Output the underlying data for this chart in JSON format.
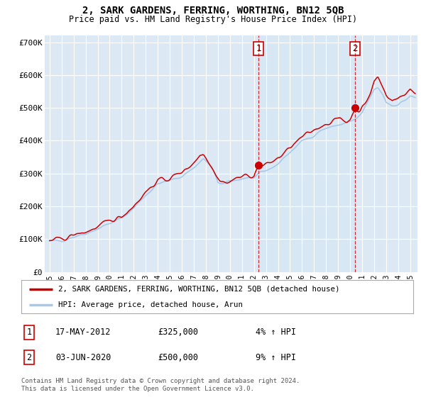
{
  "title": "2, SARK GARDENS, FERRING, WORTHING, BN12 5QB",
  "subtitle": "Price paid vs. HM Land Registry's House Price Index (HPI)",
  "background_color": "#ffffff",
  "plot_bg_color": "#dce9f5",
  "grid_color": "#ffffff",
  "hpi_color": "#a8c8e8",
  "price_color": "#cc0000",
  "marker_color": "#cc0000",
  "vline_color": "#cc0000",
  "ylim": [
    0,
    720000
  ],
  "yticks": [
    0,
    100000,
    200000,
    300000,
    400000,
    500000,
    600000,
    700000
  ],
  "ytick_labels": [
    "£0",
    "£100K",
    "£200K",
    "£300K",
    "£400K",
    "£500K",
    "£600K",
    "£700K"
  ],
  "xlim_start": 1994.6,
  "xlim_end": 2025.6,
  "xtick_years": [
    1995,
    1996,
    1997,
    1998,
    1999,
    2000,
    2001,
    2002,
    2003,
    2004,
    2005,
    2006,
    2007,
    2008,
    2009,
    2010,
    2011,
    2012,
    2013,
    2014,
    2015,
    2016,
    2017,
    2018,
    2019,
    2020,
    2021,
    2022,
    2023,
    2024,
    2025
  ],
  "sale1_x": 2012.38,
  "sale1_y": 325000,
  "sale1_label": "1",
  "sale2_x": 2020.42,
  "sale2_y": 500000,
  "sale2_label": "2",
  "legend_line1": "2, SARK GARDENS, FERRING, WORTHING, BN12 5QB (detached house)",
  "legend_line2": "HPI: Average price, detached house, Arun",
  "table_row1_label": "1",
  "table_row1_date": "17-MAY-2012",
  "table_row1_price": "£325,000",
  "table_row1_hpi": "4% ↑ HPI",
  "table_row2_label": "2",
  "table_row2_date": "03-JUN-2020",
  "table_row2_price": "£500,000",
  "table_row2_hpi": "9% ↑ HPI",
  "footnote": "Contains HM Land Registry data © Crown copyright and database right 2024.\nThis data is licensed under the Open Government Licence v3.0.",
  "hpi_anchors_t": [
    1995.0,
    1996.0,
    1997.0,
    1998.0,
    1999.0,
    2000.0,
    2001.0,
    2002.0,
    2003.0,
    2004.0,
    2005.0,
    2006.0,
    2007.0,
    2007.8,
    2008.5,
    2009.0,
    2009.5,
    2010.0,
    2010.5,
    2011.0,
    2011.5,
    2012.0,
    2012.5,
    2013.0,
    2013.5,
    2014.0,
    2014.5,
    2015.0,
    2015.5,
    2016.0,
    2016.5,
    2017.0,
    2017.5,
    2018.0,
    2018.5,
    2019.0,
    2019.5,
    2020.0,
    2020.5,
    2021.0,
    2021.5,
    2022.0,
    2022.3,
    2022.7,
    2023.0,
    2023.5,
    2024.0,
    2024.5,
    2025.0,
    2025.4
  ],
  "hpi_anchors_y": [
    92000,
    97000,
    108000,
    118000,
    132000,
    148000,
    163000,
    195000,
    235000,
    268000,
    278000,
    292000,
    318000,
    345000,
    318000,
    272000,
    268000,
    275000,
    280000,
    285000,
    288000,
    285000,
    298000,
    308000,
    318000,
    330000,
    348000,
    365000,
    382000,
    398000,
    408000,
    418000,
    430000,
    438000,
    442000,
    448000,
    452000,
    458000,
    465000,
    482000,
    520000,
    555000,
    560000,
    542000,
    518000,
    508000,
    512000,
    522000,
    535000,
    530000
  ],
  "price_anchors_t": [
    1995.0,
    1996.0,
    1997.0,
    1998.0,
    1999.0,
    2000.0,
    2001.0,
    2002.0,
    2003.0,
    2004.0,
    2005.0,
    2005.5,
    2006.0,
    2006.5,
    2007.0,
    2007.5,
    2007.8,
    2008.3,
    2008.7,
    2009.2,
    2009.7,
    2010.2,
    2010.7,
    2011.2,
    2011.7,
    2012.0,
    2012.38,
    2012.7,
    2013.2,
    2013.7,
    2014.2,
    2014.7,
    2015.2,
    2015.7,
    2016.2,
    2016.7,
    2017.2,
    2017.7,
    2018.2,
    2018.7,
    2019.2,
    2019.7,
    2020.0,
    2020.42,
    2020.8,
    2021.2,
    2021.7,
    2022.0,
    2022.3,
    2022.6,
    2023.0,
    2023.5,
    2024.0,
    2024.5,
    2025.0,
    2025.4
  ],
  "price_anchors_y": [
    95000,
    100000,
    112000,
    122000,
    136000,
    155000,
    170000,
    202000,
    244000,
    278000,
    285000,
    295000,
    305000,
    318000,
    335000,
    355000,
    360000,
    335000,
    308000,
    278000,
    272000,
    280000,
    288000,
    292000,
    295000,
    292000,
    325000,
    322000,
    330000,
    340000,
    352000,
    368000,
    385000,
    400000,
    415000,
    425000,
    438000,
    448000,
    455000,
    462000,
    468000,
    458000,
    465000,
    500000,
    490000,
    510000,
    545000,
    580000,
    595000,
    572000,
    542000,
    522000,
    528000,
    542000,
    558000,
    548000
  ]
}
